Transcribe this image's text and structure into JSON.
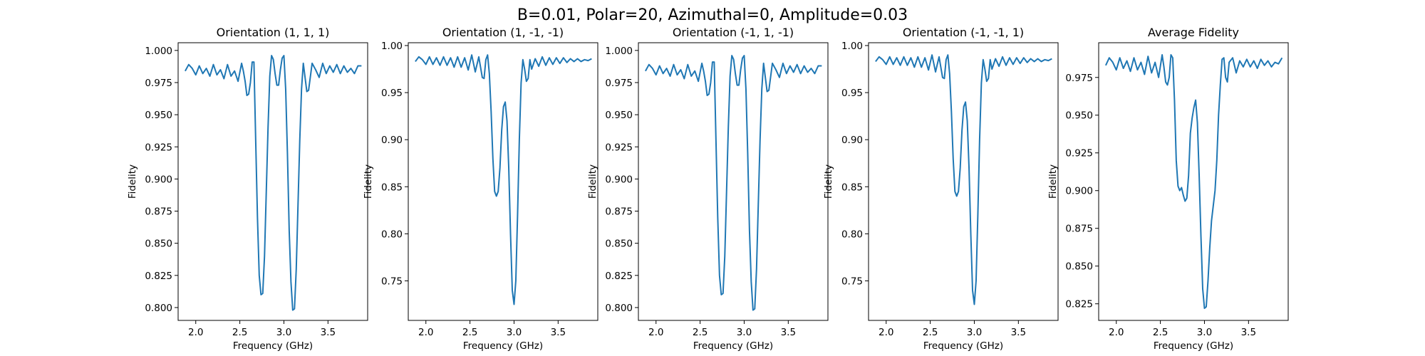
{
  "figure": {
    "suptitle": "B=0.01, Polar=20, Azimuthal=0, Amplitude=0.03"
  },
  "chart_data": [
    {
      "type": "line",
      "title": "Orientation (1, 1, 1)",
      "xlabel": "Frequency (GHz)",
      "ylabel": "Fidelity",
      "xlim": [
        1.8,
        3.95
      ],
      "ylim": [
        0.79,
        1.006
      ],
      "xticks": [
        2.0,
        2.5,
        3.0,
        3.5
      ],
      "xtick_labels": [
        "2.0",
        "2.5",
        "3.0",
        "3.5"
      ],
      "yticks": [
        0.8,
        0.825,
        0.85,
        0.875,
        0.9,
        0.925,
        0.95,
        0.975,
        1.0
      ],
      "ytick_labels": [
        "0.800",
        "0.825",
        "0.850",
        "0.875",
        "0.900",
        "0.925",
        "0.950",
        "0.975",
        "1.000"
      ],
      "grid": false,
      "series": [
        {
          "x": [
            1.88,
            1.92,
            1.96,
            2.0,
            2.04,
            2.08,
            2.12,
            2.16,
            2.2,
            2.24,
            2.28,
            2.32,
            2.36,
            2.4,
            2.44,
            2.48,
            2.52,
            2.54,
            2.56,
            2.58,
            2.6,
            2.62,
            2.64,
            2.66,
            2.68,
            2.7,
            2.72,
            2.74,
            2.76,
            2.78,
            2.8,
            2.82,
            2.84,
            2.86,
            2.88,
            2.9,
            2.92,
            2.94,
            2.96,
            2.98,
            3.0,
            3.02,
            3.04,
            3.06,
            3.08,
            3.1,
            3.12,
            3.14,
            3.16,
            3.18,
            3.2,
            3.22,
            3.24,
            3.26,
            3.28,
            3.32,
            3.36,
            3.4,
            3.44,
            3.48,
            3.52,
            3.56,
            3.6,
            3.64,
            3.68,
            3.72,
            3.76,
            3.8,
            3.84,
            3.88
          ],
          "y": [
            0.984,
            0.989,
            0.986,
            0.981,
            0.988,
            0.982,
            0.986,
            0.98,
            0.989,
            0.981,
            0.985,
            0.978,
            0.989,
            0.98,
            0.984,
            0.976,
            0.99,
            0.984,
            0.976,
            0.965,
            0.966,
            0.975,
            0.991,
            0.991,
            0.93,
            0.87,
            0.825,
            0.81,
            0.811,
            0.84,
            0.89,
            0.94,
            0.98,
            0.996,
            0.993,
            0.982,
            0.973,
            0.973,
            0.985,
            0.994,
            0.996,
            0.97,
            0.92,
            0.86,
            0.82,
            0.798,
            0.799,
            0.83,
            0.88,
            0.93,
            0.97,
            0.99,
            0.979,
            0.968,
            0.969,
            0.99,
            0.985,
            0.979,
            0.99,
            0.982,
            0.988,
            0.983,
            0.989,
            0.982,
            0.988,
            0.983,
            0.986,
            0.982,
            0.988,
            0.988
          ]
        }
      ]
    },
    {
      "type": "line",
      "title": "Orientation (1, -1, -1)",
      "xlabel": "Frequency (GHz)",
      "ylabel": "Fidelity",
      "xlim": [
        1.8,
        3.95
      ],
      "ylim": [
        0.708,
        1.003
      ],
      "xticks": [
        2.0,
        2.5,
        3.0,
        3.5
      ],
      "xtick_labels": [
        "2.0",
        "2.5",
        "3.0",
        "3.5"
      ],
      "yticks": [
        0.75,
        0.8,
        0.85,
        0.9,
        0.95,
        1.0
      ],
      "ytick_labels": [
        "0.75",
        "0.80",
        "0.85",
        "0.90",
        "0.95",
        "1.00"
      ],
      "grid": false,
      "series": [
        {
          "x": [
            1.88,
            1.92,
            1.96,
            2.0,
            2.04,
            2.08,
            2.12,
            2.16,
            2.2,
            2.24,
            2.28,
            2.32,
            2.36,
            2.4,
            2.44,
            2.48,
            2.52,
            2.56,
            2.6,
            2.64,
            2.66,
            2.68,
            2.7,
            2.72,
            2.74,
            2.76,
            2.78,
            2.8,
            2.82,
            2.84,
            2.86,
            2.88,
            2.9,
            2.92,
            2.94,
            2.96,
            2.98,
            3.0,
            3.02,
            3.04,
            3.06,
            3.08,
            3.1,
            3.12,
            3.14,
            3.16,
            3.18,
            3.2,
            3.24,
            3.28,
            3.32,
            3.36,
            3.4,
            3.44,
            3.48,
            3.52,
            3.56,
            3.6,
            3.64,
            3.68,
            3.72,
            3.76,
            3.8,
            3.84,
            3.88
          ],
          "y": [
            0.983,
            0.988,
            0.985,
            0.98,
            0.988,
            0.98,
            0.987,
            0.979,
            0.988,
            0.979,
            0.987,
            0.977,
            0.988,
            0.977,
            0.987,
            0.974,
            0.99,
            0.972,
            0.988,
            0.966,
            0.965,
            0.985,
            0.99,
            0.97,
            0.93,
            0.88,
            0.845,
            0.84,
            0.845,
            0.87,
            0.91,
            0.935,
            0.94,
            0.92,
            0.87,
            0.8,
            0.74,
            0.725,
            0.75,
            0.82,
            0.9,
            0.96,
            0.985,
            0.975,
            0.962,
            0.965,
            0.985,
            0.975,
            0.986,
            0.978,
            0.988,
            0.979,
            0.987,
            0.98,
            0.987,
            0.981,
            0.987,
            0.982,
            0.986,
            0.983,
            0.986,
            0.983,
            0.985,
            0.984,
            0.986
          ]
        }
      ]
    },
    {
      "type": "line",
      "title": "Orientation (-1, 1, -1)",
      "xlabel": "Frequency (GHz)",
      "ylabel": "Fidelity",
      "xlim": [
        1.8,
        3.95
      ],
      "ylim": [
        0.79,
        1.006
      ],
      "xticks": [
        2.0,
        2.5,
        3.0,
        3.5
      ],
      "xtick_labels": [
        "2.0",
        "2.5",
        "3.0",
        "3.5"
      ],
      "yticks": [
        0.8,
        0.825,
        0.85,
        0.875,
        0.9,
        0.925,
        0.95,
        0.975,
        1.0
      ],
      "ytick_labels": [
        "0.800",
        "0.825",
        "0.850",
        "0.875",
        "0.900",
        "0.925",
        "0.950",
        "0.975",
        "1.000"
      ],
      "grid": false,
      "series": [
        {
          "x": [
            1.88,
            1.92,
            1.96,
            2.0,
            2.04,
            2.08,
            2.12,
            2.16,
            2.2,
            2.24,
            2.28,
            2.32,
            2.36,
            2.4,
            2.44,
            2.48,
            2.52,
            2.54,
            2.56,
            2.58,
            2.6,
            2.62,
            2.64,
            2.66,
            2.68,
            2.7,
            2.72,
            2.74,
            2.76,
            2.78,
            2.8,
            2.82,
            2.84,
            2.86,
            2.88,
            2.9,
            2.92,
            2.94,
            2.96,
            2.98,
            3.0,
            3.02,
            3.04,
            3.06,
            3.08,
            3.1,
            3.12,
            3.14,
            3.16,
            3.18,
            3.2,
            3.22,
            3.24,
            3.26,
            3.28,
            3.32,
            3.36,
            3.4,
            3.44,
            3.48,
            3.52,
            3.56,
            3.6,
            3.64,
            3.68,
            3.72,
            3.76,
            3.8,
            3.84,
            3.88
          ],
          "y": [
            0.984,
            0.989,
            0.986,
            0.981,
            0.988,
            0.982,
            0.986,
            0.98,
            0.989,
            0.981,
            0.985,
            0.978,
            0.989,
            0.98,
            0.984,
            0.976,
            0.99,
            0.984,
            0.976,
            0.965,
            0.966,
            0.975,
            0.991,
            0.991,
            0.93,
            0.87,
            0.825,
            0.81,
            0.811,
            0.84,
            0.89,
            0.94,
            0.98,
            0.996,
            0.993,
            0.982,
            0.973,
            0.973,
            0.985,
            0.994,
            0.996,
            0.97,
            0.92,
            0.86,
            0.82,
            0.798,
            0.799,
            0.83,
            0.88,
            0.93,
            0.97,
            0.99,
            0.979,
            0.968,
            0.969,
            0.99,
            0.985,
            0.979,
            0.99,
            0.982,
            0.988,
            0.983,
            0.989,
            0.982,
            0.988,
            0.983,
            0.986,
            0.982,
            0.988,
            0.988
          ]
        }
      ]
    },
    {
      "type": "line",
      "title": "Orientation (-1, -1, 1)",
      "xlabel": "Frequency (GHz)",
      "ylabel": "Fidelity",
      "xlim": [
        1.8,
        3.95
      ],
      "ylim": [
        0.708,
        1.003
      ],
      "xticks": [
        2.0,
        2.5,
        3.0,
        3.5
      ],
      "xtick_labels": [
        "2.0",
        "2.5",
        "3.0",
        "3.5"
      ],
      "yticks": [
        0.75,
        0.8,
        0.85,
        0.9,
        0.95,
        1.0
      ],
      "ytick_labels": [
        "0.75",
        "0.80",
        "0.85",
        "0.90",
        "0.95",
        "1.00"
      ],
      "grid": false,
      "series": [
        {
          "x": [
            1.88,
            1.92,
            1.96,
            2.0,
            2.04,
            2.08,
            2.12,
            2.16,
            2.2,
            2.24,
            2.28,
            2.32,
            2.36,
            2.4,
            2.44,
            2.48,
            2.52,
            2.56,
            2.6,
            2.64,
            2.66,
            2.68,
            2.7,
            2.72,
            2.74,
            2.76,
            2.78,
            2.8,
            2.82,
            2.84,
            2.86,
            2.88,
            2.9,
            2.92,
            2.94,
            2.96,
            2.98,
            3.0,
            3.02,
            3.04,
            3.06,
            3.08,
            3.1,
            3.12,
            3.14,
            3.16,
            3.18,
            3.2,
            3.24,
            3.28,
            3.32,
            3.36,
            3.4,
            3.44,
            3.48,
            3.52,
            3.56,
            3.6,
            3.64,
            3.68,
            3.72,
            3.76,
            3.8,
            3.84,
            3.88
          ],
          "y": [
            0.983,
            0.988,
            0.985,
            0.98,
            0.988,
            0.98,
            0.987,
            0.979,
            0.988,
            0.979,
            0.987,
            0.977,
            0.988,
            0.977,
            0.987,
            0.974,
            0.99,
            0.972,
            0.988,
            0.966,
            0.965,
            0.985,
            0.99,
            0.97,
            0.93,
            0.88,
            0.845,
            0.84,
            0.845,
            0.87,
            0.91,
            0.935,
            0.94,
            0.92,
            0.87,
            0.8,
            0.74,
            0.725,
            0.75,
            0.82,
            0.9,
            0.96,
            0.985,
            0.975,
            0.962,
            0.965,
            0.985,
            0.975,
            0.986,
            0.978,
            0.988,
            0.979,
            0.987,
            0.98,
            0.987,
            0.981,
            0.987,
            0.982,
            0.986,
            0.983,
            0.986,
            0.983,
            0.985,
            0.984,
            0.986
          ]
        }
      ]
    },
    {
      "type": "line",
      "title": "Average Fidelity",
      "xlabel": "Frequency (GHz)",
      "ylabel": "Fidelity",
      "xlim": [
        1.8,
        3.95
      ],
      "ylim": [
        0.814,
        0.998
      ],
      "xticks": [
        2.0,
        2.5,
        3.0,
        3.5
      ],
      "xtick_labels": [
        "2.0",
        "2.5",
        "3.0",
        "3.5"
      ],
      "yticks": [
        0.825,
        0.85,
        0.875,
        0.9,
        0.925,
        0.95,
        0.975
      ],
      "ytick_labels": [
        "0.825",
        "0.850",
        "0.875",
        "0.900",
        "0.925",
        "0.950",
        "0.975"
      ],
      "grid": false,
      "series": [
        {
          "x": [
            1.88,
            1.92,
            1.96,
            2.0,
            2.04,
            2.08,
            2.12,
            2.16,
            2.2,
            2.24,
            2.28,
            2.32,
            2.36,
            2.4,
            2.44,
            2.48,
            2.52,
            2.54,
            2.56,
            2.58,
            2.6,
            2.62,
            2.64,
            2.66,
            2.68,
            2.7,
            2.72,
            2.74,
            2.76,
            2.78,
            2.8,
            2.82,
            2.84,
            2.86,
            2.88,
            2.9,
            2.92,
            2.94,
            2.96,
            2.98,
            3.0,
            3.02,
            3.04,
            3.06,
            3.08,
            3.1,
            3.12,
            3.14,
            3.16,
            3.18,
            3.2,
            3.22,
            3.24,
            3.26,
            3.28,
            3.32,
            3.36,
            3.4,
            3.44,
            3.48,
            3.52,
            3.56,
            3.6,
            3.64,
            3.68,
            3.72,
            3.76,
            3.8,
            3.84,
            3.88
          ],
          "y": [
            0.983,
            0.988,
            0.985,
            0.98,
            0.988,
            0.981,
            0.986,
            0.979,
            0.988,
            0.98,
            0.985,
            0.977,
            0.989,
            0.978,
            0.985,
            0.975,
            0.99,
            0.982,
            0.972,
            0.97,
            0.975,
            0.99,
            0.988,
            0.96,
            0.92,
            0.903,
            0.9,
            0.902,
            0.897,
            0.893,
            0.895,
            0.91,
            0.938,
            0.948,
            0.955,
            0.96,
            0.945,
            0.91,
            0.87,
            0.835,
            0.822,
            0.823,
            0.84,
            0.862,
            0.88,
            0.89,
            0.9,
            0.92,
            0.95,
            0.97,
            0.987,
            0.988,
            0.975,
            0.972,
            0.985,
            0.988,
            0.978,
            0.986,
            0.982,
            0.987,
            0.982,
            0.986,
            0.981,
            0.987,
            0.983,
            0.986,
            0.982,
            0.985,
            0.984,
            0.988
          ]
        }
      ]
    }
  ]
}
